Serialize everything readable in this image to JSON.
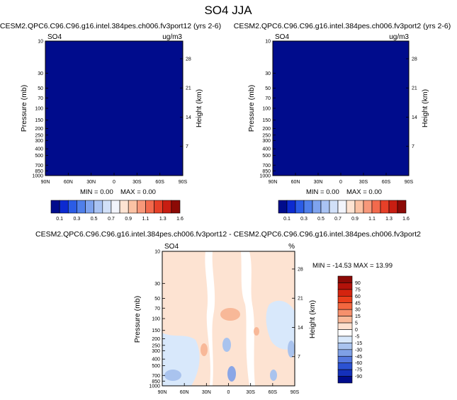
{
  "page": {
    "title": "SO4 JJA"
  },
  "panels": [
    {
      "title": "CESM2.QPC6.C96.C96.g16.intel.384pes.ch006.fv3port12 (yrs 2-6)",
      "left_label": "SO4",
      "right_label": "ug/m3",
      "stats": {
        "min_text": "MIN =   0.00",
        "max_text": "MAX =   0.00"
      }
    },
    {
      "title": "CESM2.QPC6.C96.C96.g16.intel.384pes.ch006.fv3port2 (yrs 2-6)",
      "left_label": "SO4",
      "right_label": "ug/m3",
      "stats": {
        "min_text": "MIN =   0.00",
        "max_text": "MAX =   0.00"
      }
    },
    {
      "title": "CESM2.QPC6.C96.C96.g16.intel.384pes.ch006.fv3port12 - CESM2.QPC6.C96.C96.g16.intel.384pes.ch006.fv3port2",
      "left_label": "SO4",
      "right_label": "%",
      "stats": {
        "minmax_text": "MIN = -14.53   MAX =  13.99"
      }
    }
  ],
  "colors": {
    "mean_fill": "#000c8c",
    "diff_neutral": "#ffffff",
    "diff_pos_light": "#fde3d2",
    "diff_pos_mid": "#f8b898",
    "diff_neg_light": "#d8e8fb",
    "diff_neg_mid": "#a9c3ee",
    "diff_neg_dark": "#8aa6e6"
  },
  "chart_data": [
    {
      "type": "heatmap",
      "xlabel": "",
      "ylabel": "Pressure (mb)",
      "y2label": "Height (km)",
      "x_ticks": [
        "90N",
        "60N",
        "30N",
        "0",
        "30S",
        "60S",
        "90S"
      ],
      "y_ticks": [
        "10",
        "30",
        "50",
        "70",
        "100",
        "150",
        "200",
        "250",
        "300",
        "400",
        "500",
        "700",
        "850",
        "1000"
      ],
      "y2_ticks": [
        "28",
        "21",
        "14",
        "7"
      ],
      "min": 0.0,
      "max": 0.0,
      "colorbar": {
        "labels": [
          "0.1",
          "0.3",
          "0.5",
          "0.7",
          "0.9",
          "1.1",
          "1.3",
          "1.6"
        ],
        "colors": [
          "#000c8c",
          "#0c2ad0",
          "#2b5ce6",
          "#4f7fea",
          "#7ea3ee",
          "#a9c3f3",
          "#d1e0f8",
          "#f2f4fb",
          "#fde3d2",
          "#fbc2a4",
          "#f7987a",
          "#f26a4d",
          "#e64028",
          "#c81e12",
          "#8c0a06"
        ]
      }
    },
    {
      "type": "heatmap",
      "xlabel": "",
      "ylabel": "Pressure (mb)",
      "y2label": "Height (km)",
      "x_ticks": [
        "90N",
        "60N",
        "30N",
        "0",
        "30S",
        "60S",
        "90S"
      ],
      "y_ticks": [
        "10",
        "30",
        "50",
        "70",
        "100",
        "150",
        "200",
        "250",
        "300",
        "400",
        "500",
        "700",
        "850",
        "1000"
      ],
      "y2_ticks": [
        "28",
        "21",
        "14",
        "7"
      ],
      "min": 0.0,
      "max": 0.0,
      "colorbar": {
        "labels": [
          "0.1",
          "0.3",
          "0.5",
          "0.7",
          "0.9",
          "1.1",
          "1.3",
          "1.6"
        ],
        "colors": [
          "#000c8c",
          "#0c2ad0",
          "#2b5ce6",
          "#4f7fea",
          "#7ea3ee",
          "#a9c3f3",
          "#d1e0f8",
          "#f2f4fb",
          "#fde3d2",
          "#fbc2a4",
          "#f7987a",
          "#f26a4d",
          "#e64028",
          "#c81e12",
          "#8c0a06"
        ]
      }
    },
    {
      "type": "heatmap",
      "xlabel": "",
      "ylabel": "Pressure (mb)",
      "y2label": "Height (km)",
      "x_ticks": [
        "90N",
        "60N",
        "30N",
        "0",
        "30S",
        "60S",
        "90S"
      ],
      "y_ticks": [
        "10",
        "30",
        "50",
        "70",
        "100",
        "150",
        "200",
        "250",
        "300",
        "400",
        "500",
        "700",
        "850",
        "1000"
      ],
      "y2_ticks": [
        "28",
        "21",
        "14",
        "7"
      ],
      "min": -14.53,
      "max": 13.99,
      "colorbar": {
        "labels": [
          "90",
          "75",
          "60",
          "45",
          "30",
          "15",
          "5",
          "0",
          "-5",
          "-15",
          "-30",
          "-45",
          "-60",
          "-75",
          "-90"
        ],
        "colors": [
          "#8c0a06",
          "#b3120a",
          "#d4240f",
          "#ea3f1c",
          "#f3673f",
          "#f6906c",
          "#f9b898",
          "#fde0cf",
          "#ffffff",
          "#d8e8fb",
          "#a9c3ee",
          "#7fa0e6",
          "#5477de",
          "#2c52d2",
          "#1430bb",
          "#000c8c"
        ]
      }
    }
  ]
}
